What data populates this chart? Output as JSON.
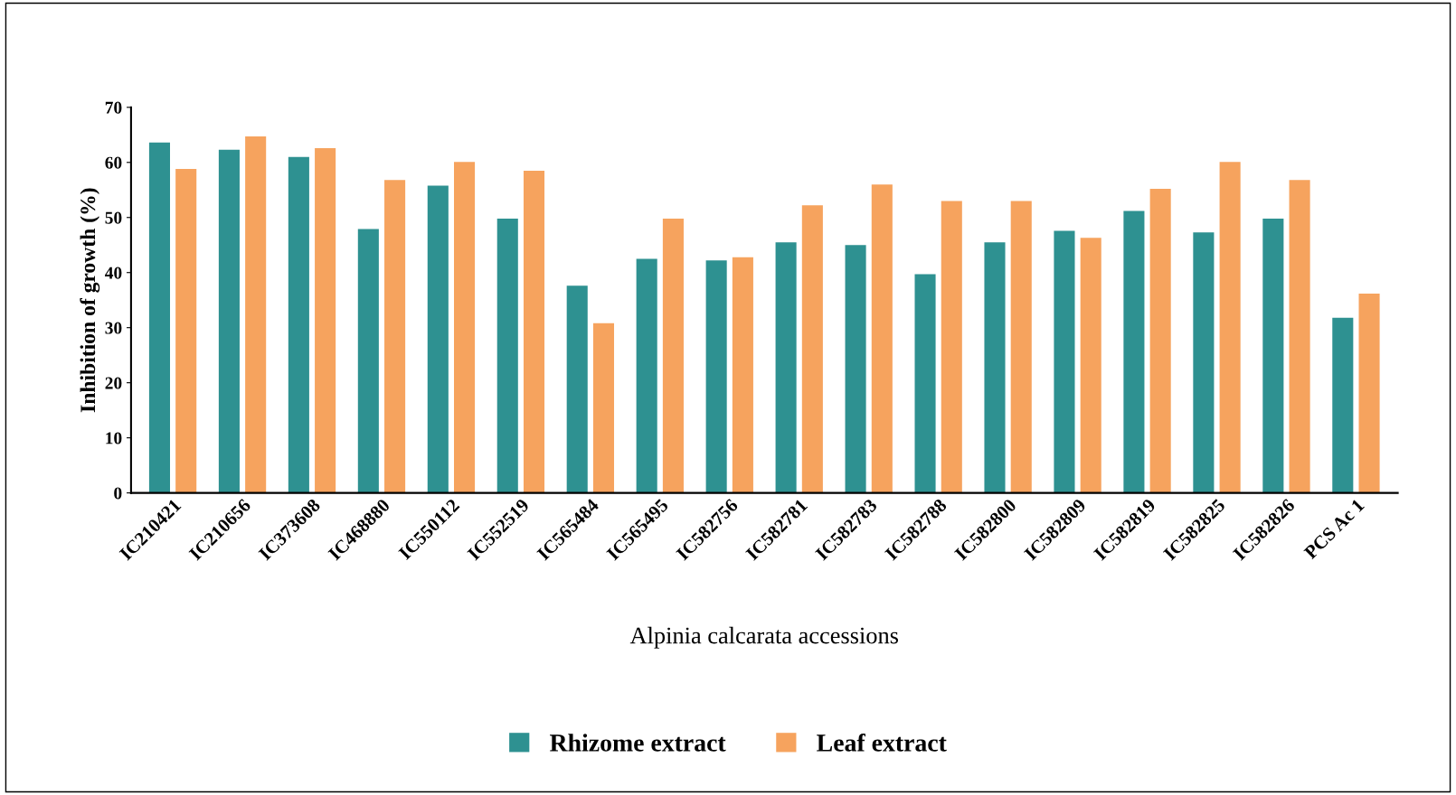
{
  "chart_data": {
    "type": "bar",
    "xlabel": "Alpinia calcarata accessions",
    "ylabel": "Inhibition of growth (%)",
    "categories": [
      "IC210421",
      "IC210656",
      "IC373608",
      "IC468880",
      "IC550112",
      "IC552519",
      "IC565484",
      "IC565495",
      "IC582756",
      "IC582781",
      "IC582783",
      "IC582788",
      "IC582800",
      "IC582809",
      "IC582819",
      "IC582825",
      "IC582826",
      "PCS Ac 1"
    ],
    "series": [
      {
        "name": "Rhizome extract",
        "color": "#2e9191",
        "values": [
          63.6,
          62.3,
          61.0,
          47.9,
          55.8,
          49.8,
          37.6,
          42.5,
          42.2,
          45.5,
          45.0,
          39.7,
          45.5,
          47.6,
          51.2,
          47.3,
          49.8,
          31.8
        ]
      },
      {
        "name": "Leaf extract",
        "color": "#f6a35e",
        "values": [
          58.8,
          64.7,
          62.6,
          56.8,
          60.1,
          58.5,
          30.8,
          49.8,
          42.8,
          52.2,
          56.0,
          53.0,
          53.0,
          46.3,
          55.2,
          60.1,
          56.8,
          36.2
        ]
      }
    ],
    "ylim": [
      0,
      70
    ],
    "yticks": [
      0,
      10,
      20,
      30,
      40,
      50,
      60,
      70
    ],
    "grid": false,
    "legend": "bottom"
  }
}
